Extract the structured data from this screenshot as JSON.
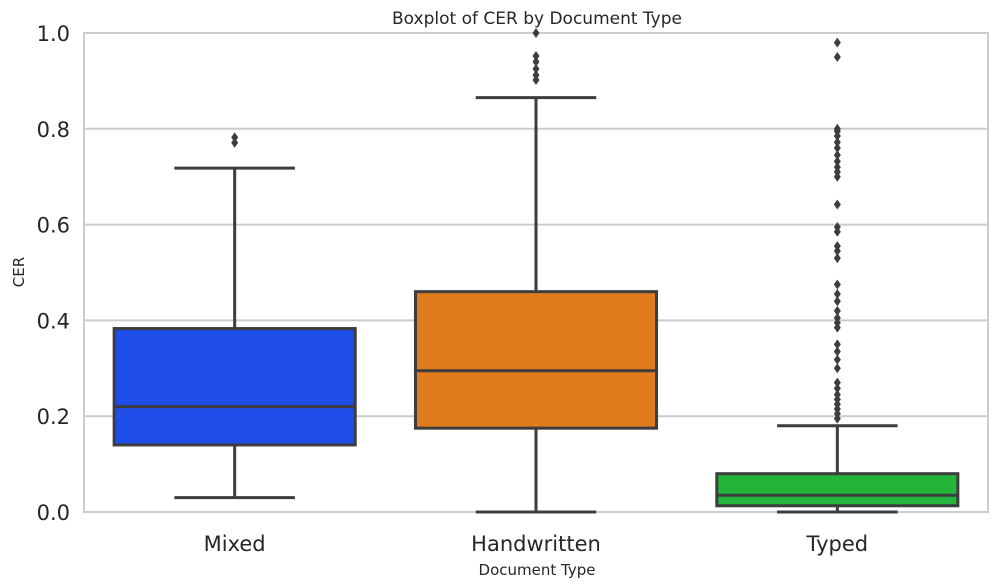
{
  "chart_data": {
    "type": "boxplot",
    "title": "Boxplot of CER by Document Type",
    "xlabel": "Document Type",
    "ylabel": "CER",
    "ylim": [
      0,
      1.0
    ],
    "yticks": [
      "0.0",
      "0.2",
      "0.4",
      "0.6",
      "0.8",
      "1.0"
    ],
    "ytick_values": [
      0,
      0.2,
      0.4,
      0.6,
      0.8,
      1.0
    ],
    "grid": true,
    "categories": [
      "Mixed",
      "Handwritten",
      "Typed"
    ],
    "boxes": [
      {
        "category": "Mixed",
        "color": "#1f4de8",
        "whisker_low": 0.03,
        "q1": 0.14,
        "median": 0.22,
        "q3": 0.383,
        "whisker_high": 0.718,
        "outliers": [
          0.771,
          0.782
        ]
      },
      {
        "category": "Handwritten",
        "color": "#e07b1e",
        "whisker_low": 0.0,
        "q1": 0.175,
        "median": 0.295,
        "q3": 0.46,
        "whisker_high": 0.865,
        "outliers": [
          0.902,
          0.912,
          0.925,
          0.94,
          0.952,
          1.0
        ]
      },
      {
        "category": "Typed",
        "color": "#22b53a",
        "whisker_low": 0.0,
        "q1": 0.013,
        "median": 0.035,
        "q3": 0.08,
        "whisker_high": 0.18,
        "outliers": [
          0.195,
          0.205,
          0.215,
          0.225,
          0.235,
          0.245,
          0.258,
          0.27,
          0.3,
          0.318,
          0.335,
          0.35,
          0.385,
          0.395,
          0.405,
          0.42,
          0.44,
          0.455,
          0.475,
          0.53,
          0.545,
          0.555,
          0.585,
          0.595,
          0.642,
          0.7,
          0.71,
          0.72,
          0.732,
          0.745,
          0.76,
          0.772,
          0.785,
          0.795,
          0.8,
          0.95,
          0.98
        ]
      }
    ]
  }
}
